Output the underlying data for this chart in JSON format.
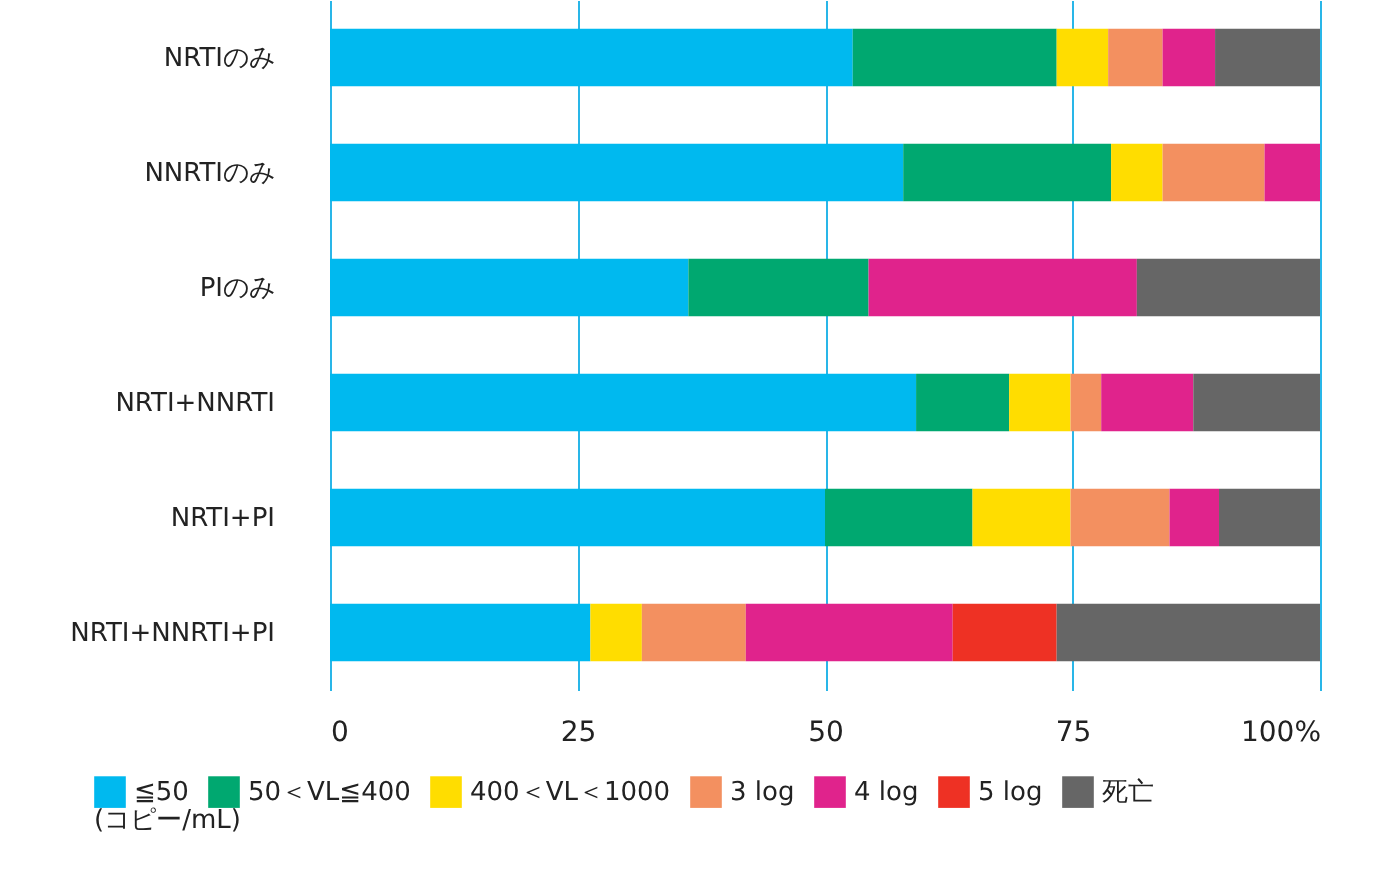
{
  "chart_data": {
    "type": "bar",
    "orientation": "horizontal",
    "stacked": true,
    "categories": [
      "NRTIのみ",
      "NNRTIのみ",
      "PIのみ",
      "NRTI+NNRTI",
      "NRTI+PI",
      "NRTI+NNRTI+PI"
    ],
    "series": [
      {
        "name": "≦50",
        "color": "#00b9ef",
        "values": [
          52.8,
          57.9,
          36.2,
          59.2,
          50.0,
          26.3
        ]
      },
      {
        "name": "50＜VL≦400",
        "color": "#00a870",
        "values": [
          20.6,
          21.0,
          18.2,
          9.4,
          14.9,
          null
        ]
      },
      {
        "name": "400＜VL＜1000",
        "color": "#ffdd00",
        "values": [
          5.2,
          5.2,
          null,
          6.2,
          9.9,
          5.2
        ]
      },
      {
        "name": "3 log",
        "color": "#f39060",
        "values": [
          5.5,
          10.3,
          null,
          3.1,
          10.0,
          10.5
        ]
      },
      {
        "name": "4 log",
        "color": "#e0238c",
        "values": [
          5.3,
          5.6,
          27.1,
          9.3,
          5.0,
          20.9
        ]
      },
      {
        "name": "5 log",
        "color": "#ee3124",
        "values": [
          null,
          null,
          null,
          null,
          null,
          10.5
        ]
      },
      {
        "name": "死亡",
        "color": "#666666",
        "values": [
          10.6,
          null,
          18.5,
          12.8,
          10.2,
          26.6
        ]
      }
    ],
    "legend_title": "(コピー/mL)",
    "legend": "bottom",
    "xlim": [
      0,
      100
    ],
    "xticks": [
      0,
      25,
      50,
      75,
      {
        "value": 100,
        "label": "100%"
      }
    ],
    "grid": "x"
  }
}
